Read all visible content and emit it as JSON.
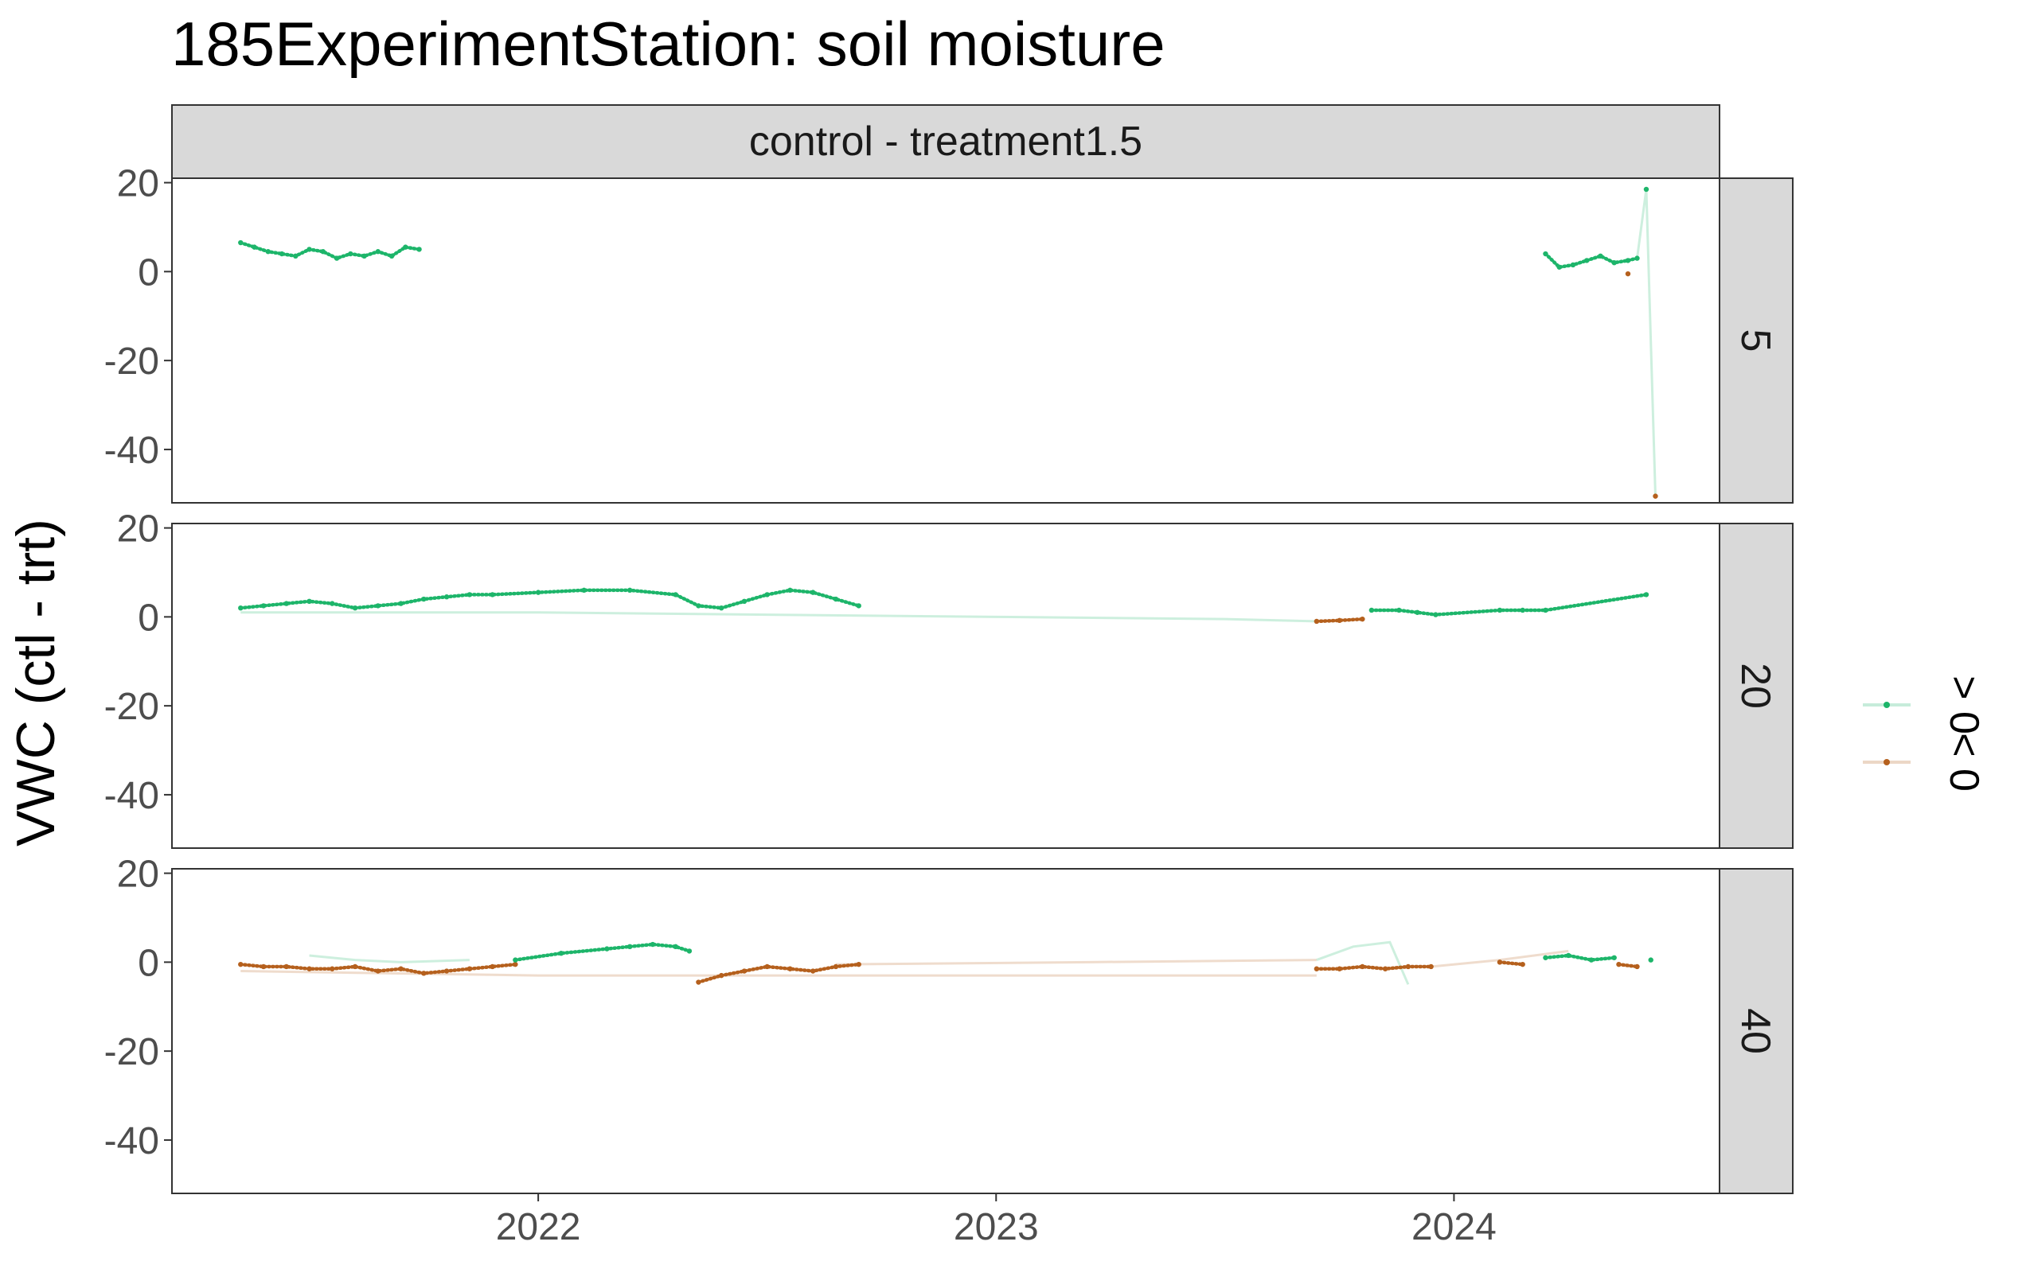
{
  "chart_data": {
    "type": "scatter",
    "title": "185ExperimentStation: soil moisture",
    "ylabel": "VWC (ctl - trt)",
    "xlabel": "",
    "facet_column_label": "control - treatment1.5",
    "x_ticks": [
      "2022",
      "2023",
      "2024"
    ],
    "x_tick_values": [
      2022.0,
      2023.0,
      2024.0
    ],
    "xlim": [
      2021.2,
      2024.58
    ],
    "ylim": [
      -52,
      21
    ],
    "y_ticks": [
      20,
      0,
      -20,
      -40
    ],
    "y_tick_labels": [
      "20",
      "0",
      "-20",
      "-40"
    ],
    "grid": false,
    "legend_position": "right",
    "legend": [
      {
        "label": "> 0",
        "color": "#1db56a"
      },
      {
        "label": "< 0",
        "color": "#b5601d"
      }
    ],
    "panels": [
      {
        "depth": "5",
        "segments": [
          {
            "x": [
              2021.35,
              2021.38,
              2021.41,
              2021.44,
              2021.47,
              2021.5,
              2021.53,
              2021.56,
              2021.59,
              2021.62,
              2021.65,
              2021.68,
              2021.71,
              2021.74
            ],
            "y": [
              6.5,
              5.5,
              4.5,
              4.0,
              3.5,
              5.0,
              4.5,
              3.0,
              4.0,
              3.5,
              4.5,
              3.5,
              5.5,
              5.0
            ],
            "sign": "pos"
          },
          {
            "x": [
              2024.2,
              2024.23,
              2024.26,
              2024.29,
              2024.32,
              2024.35,
              2024.38,
              2024.4
            ],
            "y": [
              4.0,
              1.0,
              1.5,
              2.5,
              3.5,
              2.0,
              2.5,
              3.0
            ],
            "sign": "pos"
          },
          {
            "x": [
              2024.42
            ],
            "y": [
              18.5
            ],
            "sign": "pos"
          },
          {
            "x": [
              2024.38
            ],
            "y": [
              -0.5
            ],
            "sign": "neg"
          },
          {
            "x": [
              2024.44
            ],
            "y": [
              -50.5
            ],
            "sign": "neg"
          }
        ],
        "lines": [
          {
            "x": [
              2024.38,
              2024.4,
              2024.42,
              2024.44
            ],
            "y": [
              2.5,
              3.0,
              18.5,
              -50.5
            ],
            "sign": "pos"
          }
        ]
      },
      {
        "depth": "20",
        "segments": [
          {
            "x": [
              2021.35,
              2021.4,
              2021.45,
              2021.5,
              2021.55,
              2021.6,
              2021.65,
              2021.7,
              2021.75,
              2021.8,
              2021.85,
              2021.9,
              2022.0,
              2022.1,
              2022.2,
              2022.3,
              2022.35,
              2022.4,
              2022.45,
              2022.5,
              2022.55,
              2022.6,
              2022.65,
              2022.7
            ],
            "y": [
              2.0,
              2.5,
              3.0,
              3.5,
              3.0,
              2.0,
              2.5,
              3.0,
              4.0,
              4.5,
              5.0,
              5.0,
              5.5,
              6.0,
              6.0,
              5.0,
              2.5,
              2.0,
              3.5,
              5.0,
              6.0,
              5.5,
              4.0,
              2.5
            ],
            "sign": "pos"
          },
          {
            "x": [
              2023.7,
              2023.75,
              2023.8
            ],
            "y": [
              -1.0,
              -0.8,
              -0.5
            ],
            "sign": "neg"
          },
          {
            "x": [
              2023.82,
              2023.88,
              2023.92,
              2023.96,
              2024.1,
              2024.15,
              2024.2,
              2024.42
            ],
            "y": [
              1.5,
              1.5,
              1.0,
              0.5,
              1.5,
              1.5,
              1.5,
              5.0
            ],
            "sign": "pos"
          }
        ],
        "lines": [
          {
            "x": [
              2021.35,
              2022.0,
              2022.5,
              2023.0,
              2023.5,
              2023.7
            ],
            "y": [
              1.0,
              1.0,
              0.5,
              0.0,
              -0.5,
              -1.0
            ],
            "sign": "pos"
          },
          {
            "x": [
              2024.2,
              2024.3,
              2024.42
            ],
            "y": [
              1.5,
              3.0,
              5.0
            ],
            "sign": "pos"
          }
        ]
      },
      {
        "depth": "40",
        "segments": [
          {
            "x": [
              2021.35,
              2021.4,
              2021.45,
              2021.5,
              2021.55,
              2021.6,
              2021.65,
              2021.7,
              2021.75,
              2021.8,
              2021.85,
              2021.9,
              2021.95
            ],
            "y": [
              -0.5,
              -1.0,
              -1.0,
              -1.5,
              -1.5,
              -1.0,
              -2.0,
              -1.5,
              -2.5,
              -2.0,
              -1.5,
              -1.0,
              -0.5
            ],
            "sign": "neg"
          },
          {
            "x": [
              2021.95,
              2022.05,
              2022.15,
              2022.2,
              2022.25,
              2022.3,
              2022.33
            ],
            "y": [
              0.5,
              2.0,
              3.0,
              3.5,
              4.0,
              3.5,
              2.5
            ],
            "sign": "pos"
          },
          {
            "x": [
              2022.35,
              2022.4,
              2022.45,
              2022.5,
              2022.55,
              2022.6,
              2022.65,
              2022.7
            ],
            "y": [
              -4.5,
              -3.0,
              -2.0,
              -1.0,
              -1.5,
              -2.0,
              -1.0,
              -0.5
            ],
            "sign": "neg"
          },
          {
            "x": [
              2023.7,
              2023.75,
              2023.8,
              2023.85,
              2023.9,
              2023.95
            ],
            "y": [
              -1.5,
              -1.5,
              -1.0,
              -1.5,
              -1.0,
              -1.0
            ],
            "sign": "neg"
          },
          {
            "x": [
              2024.1,
              2024.15
            ],
            "y": [
              0.0,
              -0.5
            ],
            "sign": "neg"
          },
          {
            "x": [
              2024.2,
              2024.25,
              2024.3,
              2024.35
            ],
            "y": [
              1.0,
              1.5,
              0.5,
              1.0
            ],
            "sign": "pos"
          },
          {
            "x": [
              2024.36,
              2024.4
            ],
            "y": [
              -0.5,
              -1.0
            ],
            "sign": "neg"
          },
          {
            "x": [
              2024.43
            ],
            "y": [
              0.5
            ],
            "sign": "pos"
          }
        ],
        "lines": [
          {
            "x": [
              2021.35,
              2022.0,
              2022.7,
              2023.0,
              2023.7
            ],
            "y": [
              -2.0,
              -3.0,
              -3.0,
              -3.0,
              -3.0
            ],
            "sign": "neg"
          },
          {
            "x": [
              2021.5,
              2021.6,
              2021.7,
              2021.85
            ],
            "y": [
              1.5,
              0.5,
              0.0,
              0.5
            ],
            "sign": "pos"
          },
          {
            "x": [
              2022.65,
              2023.2,
              2023.7
            ],
            "y": [
              -0.5,
              0.0,
              0.5
            ],
            "sign": "neg"
          },
          {
            "x": [
              2023.7,
              2023.78,
              2023.86,
              2023.9
            ],
            "y": [
              0.5,
              3.5,
              4.5,
              -5.0
            ],
            "sign": "pos"
          },
          {
            "x": [
              2023.95,
              2024.1,
              2024.25
            ],
            "y": [
              -1.0,
              0.5,
              2.5
            ],
            "sign": "neg"
          }
        ]
      }
    ]
  }
}
